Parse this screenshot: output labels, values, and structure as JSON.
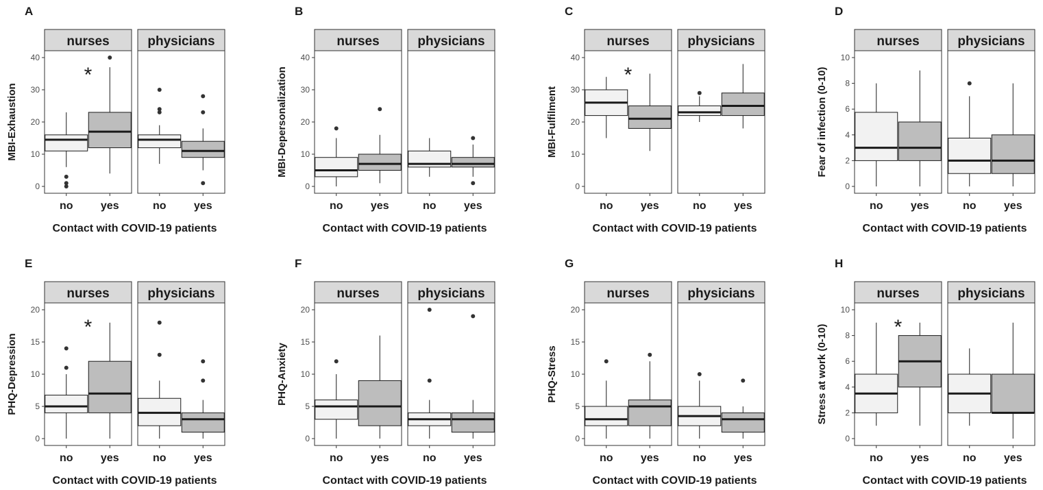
{
  "x_label": "Contact with COVID-19 patients",
  "facets": [
    "nurses",
    "physicians"
  ],
  "groups": [
    "no",
    "yes"
  ],
  "significance_mark": "*",
  "colors": {
    "no": "#f2f2f2",
    "yes": "#bdbdbd",
    "strip": "#d9d9d9",
    "line": "#1a1a1a",
    "point": "#333333"
  },
  "chart_data": [
    {
      "type": "box",
      "letter": "A",
      "ylabel": "MBI-Exhaustion",
      "ylim": [
        0,
        40
      ],
      "yticks": [
        0,
        10,
        20,
        30,
        40
      ],
      "facets": [
        {
          "name": "nurses",
          "significant": true,
          "boxes": [
            {
              "group": "no",
              "whislo": 6,
              "q1": 11,
              "med": 14.5,
              "q3": 16,
              "whishi": 23,
              "fliers": [
                0,
                1,
                3
              ]
            },
            {
              "group": "yes",
              "whislo": 4,
              "q1": 12,
              "med": 17,
              "q3": 23,
              "whishi": 37,
              "fliers": [
                40
              ]
            }
          ]
        },
        {
          "name": "physicians",
          "significant": false,
          "boxes": [
            {
              "group": "no",
              "whislo": 7,
              "q1": 12,
              "med": 14.5,
              "q3": 16,
              "whishi": 19,
              "fliers": [
                23,
                24,
                30
              ]
            },
            {
              "group": "yes",
              "whislo": 5,
              "q1": 9,
              "med": 11,
              "q3": 14,
              "whishi": 18,
              "fliers": [
                1,
                23,
                28
              ]
            }
          ]
        }
      ]
    },
    {
      "type": "box",
      "letter": "B",
      "ylabel": "MBI-Depersonalization",
      "ylim": [
        0,
        40
      ],
      "yticks": [
        0,
        10,
        20,
        30,
        40
      ],
      "facets": [
        {
          "name": "nurses",
          "significant": false,
          "boxes": [
            {
              "group": "no",
              "whislo": 0,
              "q1": 3,
              "med": 5,
              "q3": 9,
              "whishi": 15,
              "fliers": [
                18
              ]
            },
            {
              "group": "yes",
              "whislo": 1,
              "q1": 5,
              "med": 7,
              "q3": 10,
              "whishi": 16,
              "fliers": [
                24
              ]
            }
          ]
        },
        {
          "name": "physicians",
          "significant": false,
          "boxes": [
            {
              "group": "no",
              "whislo": 3,
              "q1": 6,
              "med": 7,
              "q3": 11,
              "whishi": 15,
              "fliers": []
            },
            {
              "group": "yes",
              "whislo": 3,
              "q1": 6,
              "med": 7,
              "q3": 9,
              "whishi": 13,
              "fliers": [
                1,
                15
              ]
            }
          ]
        }
      ]
    },
    {
      "type": "box",
      "letter": "C",
      "ylabel": "MBI-Fulfilment",
      "ylim": [
        0,
        40
      ],
      "yticks": [
        0,
        10,
        20,
        30,
        40
      ],
      "facets": [
        {
          "name": "nurses",
          "significant": true,
          "boxes": [
            {
              "group": "no",
              "whislo": 15,
              "q1": 22,
              "med": 26,
              "q3": 30,
              "whishi": 34,
              "fliers": []
            },
            {
              "group": "yes",
              "whislo": 11,
              "q1": 18,
              "med": 21,
              "q3": 25,
              "whishi": 35,
              "fliers": []
            }
          ]
        },
        {
          "name": "physicians",
          "significant": false,
          "boxes": [
            {
              "group": "no",
              "whislo": 20,
              "q1": 22,
              "med": 23,
              "q3": 25,
              "whishi": 28,
              "fliers": [
                29
              ]
            },
            {
              "group": "yes",
              "whislo": 18,
              "q1": 22,
              "med": 25,
              "q3": 29,
              "whishi": 38,
              "fliers": []
            }
          ]
        }
      ]
    },
    {
      "type": "box",
      "letter": "D",
      "ylabel": "Fear of infection (0-10)",
      "ylim": [
        0,
        10
      ],
      "yticks": [
        0,
        2,
        4,
        6,
        8,
        10
      ],
      "facets": [
        {
          "name": "nurses",
          "significant": false,
          "boxes": [
            {
              "group": "no",
              "whislo": 0,
              "q1": 2,
              "med": 3,
              "q3": 5.75,
              "whishi": 8,
              "fliers": []
            },
            {
              "group": "yes",
              "whislo": 0,
              "q1": 2,
              "med": 3,
              "q3": 5,
              "whishi": 9,
              "fliers": []
            }
          ]
        },
        {
          "name": "physicians",
          "significant": false,
          "boxes": [
            {
              "group": "no",
              "whislo": 0,
              "q1": 1,
              "med": 2,
              "q3": 3.75,
              "whishi": 7,
              "fliers": [
                8
              ]
            },
            {
              "group": "yes",
              "whislo": 0,
              "q1": 1,
              "med": 2,
              "q3": 4,
              "whishi": 8,
              "fliers": []
            }
          ]
        }
      ]
    },
    {
      "type": "box",
      "letter": "E",
      "ylabel": "PHQ-Depression",
      "ylim": [
        0,
        20
      ],
      "yticks": [
        0,
        5,
        10,
        15,
        20
      ],
      "facets": [
        {
          "name": "nurses",
          "significant": true,
          "boxes": [
            {
              "group": "no",
              "whislo": 0,
              "q1": 4,
              "med": 5,
              "q3": 6.75,
              "whishi": 10,
              "fliers": [
                11,
                14
              ]
            },
            {
              "group": "yes",
              "whislo": 0,
              "q1": 4,
              "med": 7,
              "q3": 12,
              "whishi": 18,
              "fliers": []
            }
          ]
        },
        {
          "name": "physicians",
          "significant": false,
          "boxes": [
            {
              "group": "no",
              "whislo": 0,
              "q1": 2,
              "med": 4,
              "q3": 6.25,
              "whishi": 9,
              "fliers": [
                13,
                18
              ]
            },
            {
              "group": "yes",
              "whislo": 0,
              "q1": 1,
              "med": 3,
              "q3": 4,
              "whishi": 6,
              "fliers": [
                9,
                12
              ]
            }
          ]
        }
      ]
    },
    {
      "type": "box",
      "letter": "F",
      "ylabel": "PHQ-Anxiety",
      "ylim": [
        0,
        20
      ],
      "yticks": [
        0,
        5,
        10,
        15,
        20
      ],
      "facets": [
        {
          "name": "nurses",
          "significant": false,
          "boxes": [
            {
              "group": "no",
              "whislo": 0,
              "q1": 3,
              "med": 5,
              "q3": 6,
              "whishi": 10,
              "fliers": [
                12
              ]
            },
            {
              "group": "yes",
              "whislo": 0,
              "q1": 2,
              "med": 5,
              "q3": 9,
              "whishi": 16,
              "fliers": []
            }
          ]
        },
        {
          "name": "physicians",
          "significant": false,
          "boxes": [
            {
              "group": "no",
              "whislo": 0,
              "q1": 2,
              "med": 3,
              "q3": 4,
              "whishi": 6,
              "fliers": [
                9,
                20
              ]
            },
            {
              "group": "yes",
              "whislo": 0,
              "q1": 1,
              "med": 3,
              "q3": 4,
              "whishi": 6,
              "fliers": [
                19
              ]
            }
          ]
        }
      ]
    },
    {
      "type": "box",
      "letter": "G",
      "ylabel": "PHQ-Stress",
      "ylim": [
        0,
        20
      ],
      "yticks": [
        0,
        5,
        10,
        15,
        20
      ],
      "facets": [
        {
          "name": "nurses",
          "significant": false,
          "boxes": [
            {
              "group": "no",
              "whislo": 0,
              "q1": 2,
              "med": 3,
              "q3": 5,
              "whishi": 9,
              "fliers": [
                12
              ]
            },
            {
              "group": "yes",
              "whislo": 0,
              "q1": 2,
              "med": 5,
              "q3": 6,
              "whishi": 12,
              "fliers": [
                13
              ]
            }
          ]
        },
        {
          "name": "physicians",
          "significant": false,
          "boxes": [
            {
              "group": "no",
              "whislo": 0,
              "q1": 2,
              "med": 3.5,
              "q3": 5,
              "whishi": 9,
              "fliers": [
                10
              ]
            },
            {
              "group": "yes",
              "whislo": 0,
              "q1": 1,
              "med": 3,
              "q3": 4,
              "whishi": 5,
              "fliers": [
                9
              ]
            }
          ]
        }
      ]
    },
    {
      "type": "box",
      "letter": "H",
      "ylabel": "Stress at work (0-10)",
      "ylim": [
        0,
        10
      ],
      "yticks": [
        0,
        2,
        4,
        6,
        8,
        10
      ],
      "facets": [
        {
          "name": "nurses",
          "significant": true,
          "boxes": [
            {
              "group": "no",
              "whislo": 1,
              "q1": 2,
              "med": 3.5,
              "q3": 5,
              "whishi": 9,
              "fliers": []
            },
            {
              "group": "yes",
              "whislo": 1,
              "q1": 4,
              "med": 6,
              "q3": 8,
              "whishi": 9,
              "fliers": []
            }
          ]
        },
        {
          "name": "physicians",
          "significant": false,
          "boxes": [
            {
              "group": "no",
              "whislo": 1,
              "q1": 2,
              "med": 3.5,
              "q3": 5,
              "whishi": 7,
              "fliers": []
            },
            {
              "group": "yes",
              "whislo": 0,
              "q1": 2,
              "med": 2,
              "q3": 5,
              "whishi": 9,
              "fliers": []
            }
          ]
        }
      ]
    }
  ]
}
